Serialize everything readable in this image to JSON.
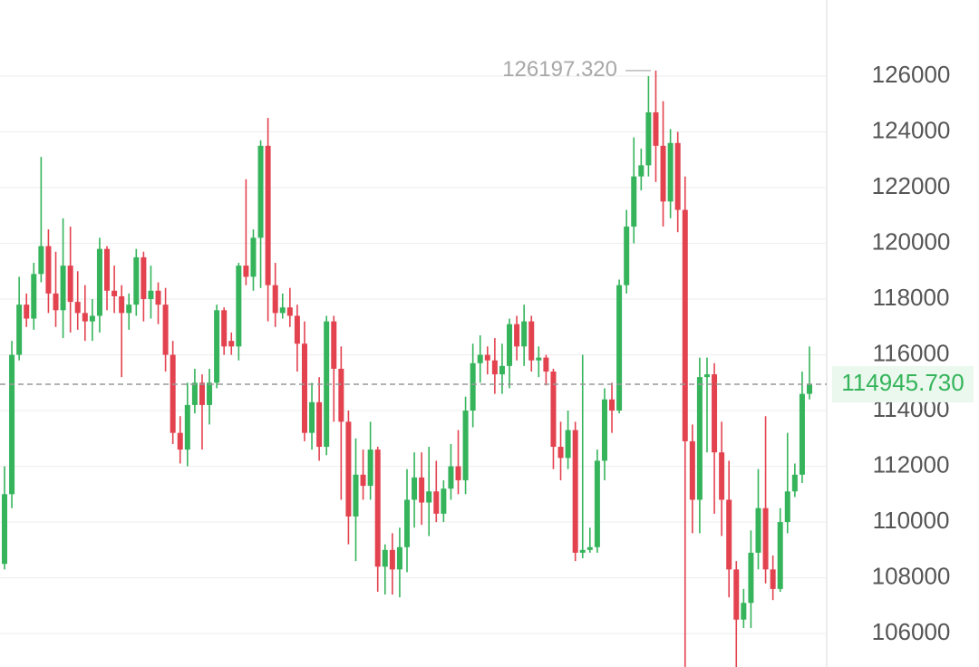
{
  "chart_data": {
    "type": "candlestick",
    "open": [
      108500,
      111000,
      116000,
      117800,
      117300,
      118900,
      119900,
      118200,
      117600,
      119200,
      117900,
      117500,
      117200,
      117400,
      119800,
      118300,
      118100,
      117500,
      117800,
      119500,
      118000,
      118300,
      117800,
      116000,
      113200,
      112600,
      114200,
      115000,
      114200,
      115000,
      117600,
      116500,
      116300,
      119200,
      118800,
      120200,
      123500,
      118500,
      117500,
      117700,
      117400,
      116400,
      113200,
      114300,
      112700,
      117200,
      115500,
      113600,
      110200,
      111700,
      111300,
      112600,
      108400,
      109000,
      108300,
      109100,
      110800,
      111600,
      110700,
      111100,
      110300,
      111200,
      112000,
      111500,
      114000,
      115700,
      116000,
      115800,
      115300,
      115600,
      117100,
      116300,
      117200,
      115800,
      115900,
      115400,
      112700,
      112300,
      113300,
      108900,
      109000,
      109100,
      112200,
      114400,
      114000,
      118500,
      120600,
      122400,
      122800,
      124700,
      123500,
      121500,
      123600,
      121200,
      112900,
      110800,
      115200,
      115300,
      112500,
      110800,
      108300,
      106500,
      107100,
      108900,
      110500,
      108300,
      107600,
      110000,
      111100,
      111700,
      114600
    ],
    "high": [
      112000,
      116500,
      118800,
      118200,
      119300,
      123100,
      120500,
      119700,
      120900,
      120600,
      119000,
      118500,
      118000,
      120200,
      119900,
      119200,
      118500,
      118200,
      119800,
      119700,
      119200,
      118600,
      118400,
      116500,
      113800,
      115000,
      115500,
      115300,
      115500,
      117800,
      117700,
      116800,
      119300,
      122300,
      120500,
      123700,
      124500,
      119300,
      118200,
      118400,
      117800,
      117200,
      115000,
      115200,
      117400,
      117400,
      116300,
      114000,
      113000,
      112600,
      113600,
      112700,
      109200,
      109600,
      109800,
      111900,
      112500,
      112500,
      112700,
      112200,
      111500,
      112800,
      113300,
      114500,
      116400,
      116700,
      116300,
      116600,
      116400,
      117300,
      117400,
      117800,
      117400,
      116300,
      116000,
      115500,
      113600,
      114000,
      113600,
      116000,
      109800,
      112600,
      114800,
      115000,
      118700,
      121200,
      123800,
      123400,
      126000,
      126197.32,
      125100,
      124100,
      124000,
      122400,
      113500,
      115900,
      115900,
      115700,
      113600,
      112200,
      108600,
      107600,
      109700,
      111900,
      113800,
      108800,
      110500,
      113200,
      112100,
      115400,
      116300
    ],
    "low": [
      108300,
      110500,
      115800,
      117000,
      116900,
      118600,
      117500,
      117000,
      116600,
      116800,
      116900,
      116500,
      116500,
      116800,
      117600,
      117500,
      115200,
      116900,
      117400,
      117200,
      117300,
      117100,
      115400,
      112800,
      112100,
      112000,
      113900,
      112600,
      113500,
      114800,
      116000,
      116000,
      115800,
      118500,
      118300,
      118400,
      117200,
      117000,
      117300,
      117000,
      115400,
      112900,
      112600,
      112200,
      112400,
      113600,
      110800,
      109200,
      108600,
      110800,
      110800,
      107500,
      107400,
      107400,
      107300,
      108200,
      109800,
      109900,
      109500,
      110000,
      110000,
      110800,
      111000,
      111000,
      113400,
      115000,
      115300,
      114600,
      114600,
      114800,
      115800,
      115600,
      115400,
      115200,
      114900,
      111900,
      111500,
      111900,
      108600,
      108700,
      108900,
      108900,
      111500,
      113200,
      113900,
      118200,
      120000,
      121900,
      122400,
      122200,
      120600,
      120900,
      120400,
      104500,
      109600,
      109600,
      112500,
      110300,
      109500,
      107300,
      104500,
      106200,
      106200,
      108300,
      107800,
      107200,
      107500,
      109600,
      110900,
      111400,
      114400
    ],
    "close": [
      111000,
      116000,
      117800,
      117300,
      118900,
      119900,
      118200,
      117600,
      119200,
      117900,
      117500,
      117200,
      117400,
      119800,
      118300,
      118100,
      117500,
      117800,
      119500,
      118000,
      118300,
      117800,
      116000,
      113200,
      112600,
      114200,
      115000,
      114200,
      115000,
      117600,
      116300,
      116300,
      119200,
      118800,
      120200,
      123500,
      118500,
      117500,
      117700,
      117400,
      116400,
      113200,
      114300,
      112700,
      117200,
      115500,
      113600,
      110200,
      111700,
      111300,
      112600,
      108400,
      109000,
      108300,
      109100,
      110800,
      111600,
      110700,
      111100,
      110300,
      111200,
      112000,
      111500,
      114000,
      115700,
      116000,
      115800,
      115300,
      115600,
      117100,
      116300,
      117200,
      115800,
      115900,
      115400,
      112700,
      112300,
      113300,
      108900,
      109000,
      109100,
      112200,
      114400,
      114000,
      118500,
      120600,
      122400,
      122800,
      124700,
      123500,
      121500,
      123600,
      121200,
      112900,
      110800,
      115200,
      115300,
      112500,
      110800,
      108300,
      106500,
      107100,
      108900,
      110500,
      108300,
      107600,
      110000,
      111100,
      111700,
      114600,
      114945.73
    ],
    "up_color": "#35b45b",
    "down_color": "#e3424f",
    "ylim": [
      104800,
      128730
    ],
    "yticks": [
      106000,
      108000,
      110000,
      112000,
      114000,
      116000,
      118000,
      120000,
      122000,
      124000,
      126000
    ],
    "grid": true,
    "max_price": {
      "value": 126197.32,
      "label": "126197.320"
    },
    "last_price": {
      "value": 114945.73,
      "label": "114945.730"
    }
  }
}
